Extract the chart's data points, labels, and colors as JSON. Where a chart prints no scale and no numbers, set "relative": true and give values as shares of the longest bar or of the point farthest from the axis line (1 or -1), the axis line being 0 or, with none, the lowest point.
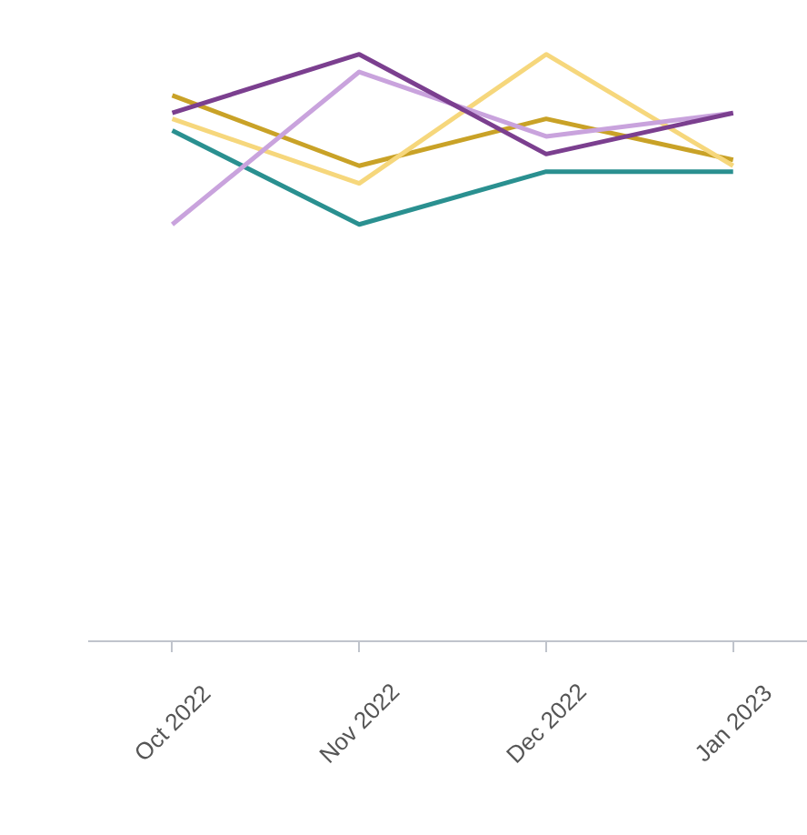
{
  "chart_data": {
    "type": "line",
    "relative": true,
    "categories": [
      "Oct 2022",
      "Nov 2022",
      "Dec 2022",
      "Jan 2023"
    ],
    "grid": false,
    "marker": "none",
    "line_style": "solid",
    "series": [
      {
        "color": "#c9a227",
        "values": [
          0.93,
          0.81,
          0.89,
          0.82
        ]
      },
      {
        "color": "#f6d77c",
        "values": [
          0.89,
          0.78,
          1.0,
          0.81
        ]
      },
      {
        "color": "#2a9090",
        "values": [
          0.87,
          0.71,
          0.8,
          0.8
        ]
      },
      {
        "color": "#c9a3dd",
        "values": [
          0.71,
          0.97,
          0.86,
          0.9
        ]
      },
      {
        "color": "#7b3f8f",
        "values": [
          0.9,
          1.0,
          0.83,
          0.9
        ]
      }
    ]
  }
}
